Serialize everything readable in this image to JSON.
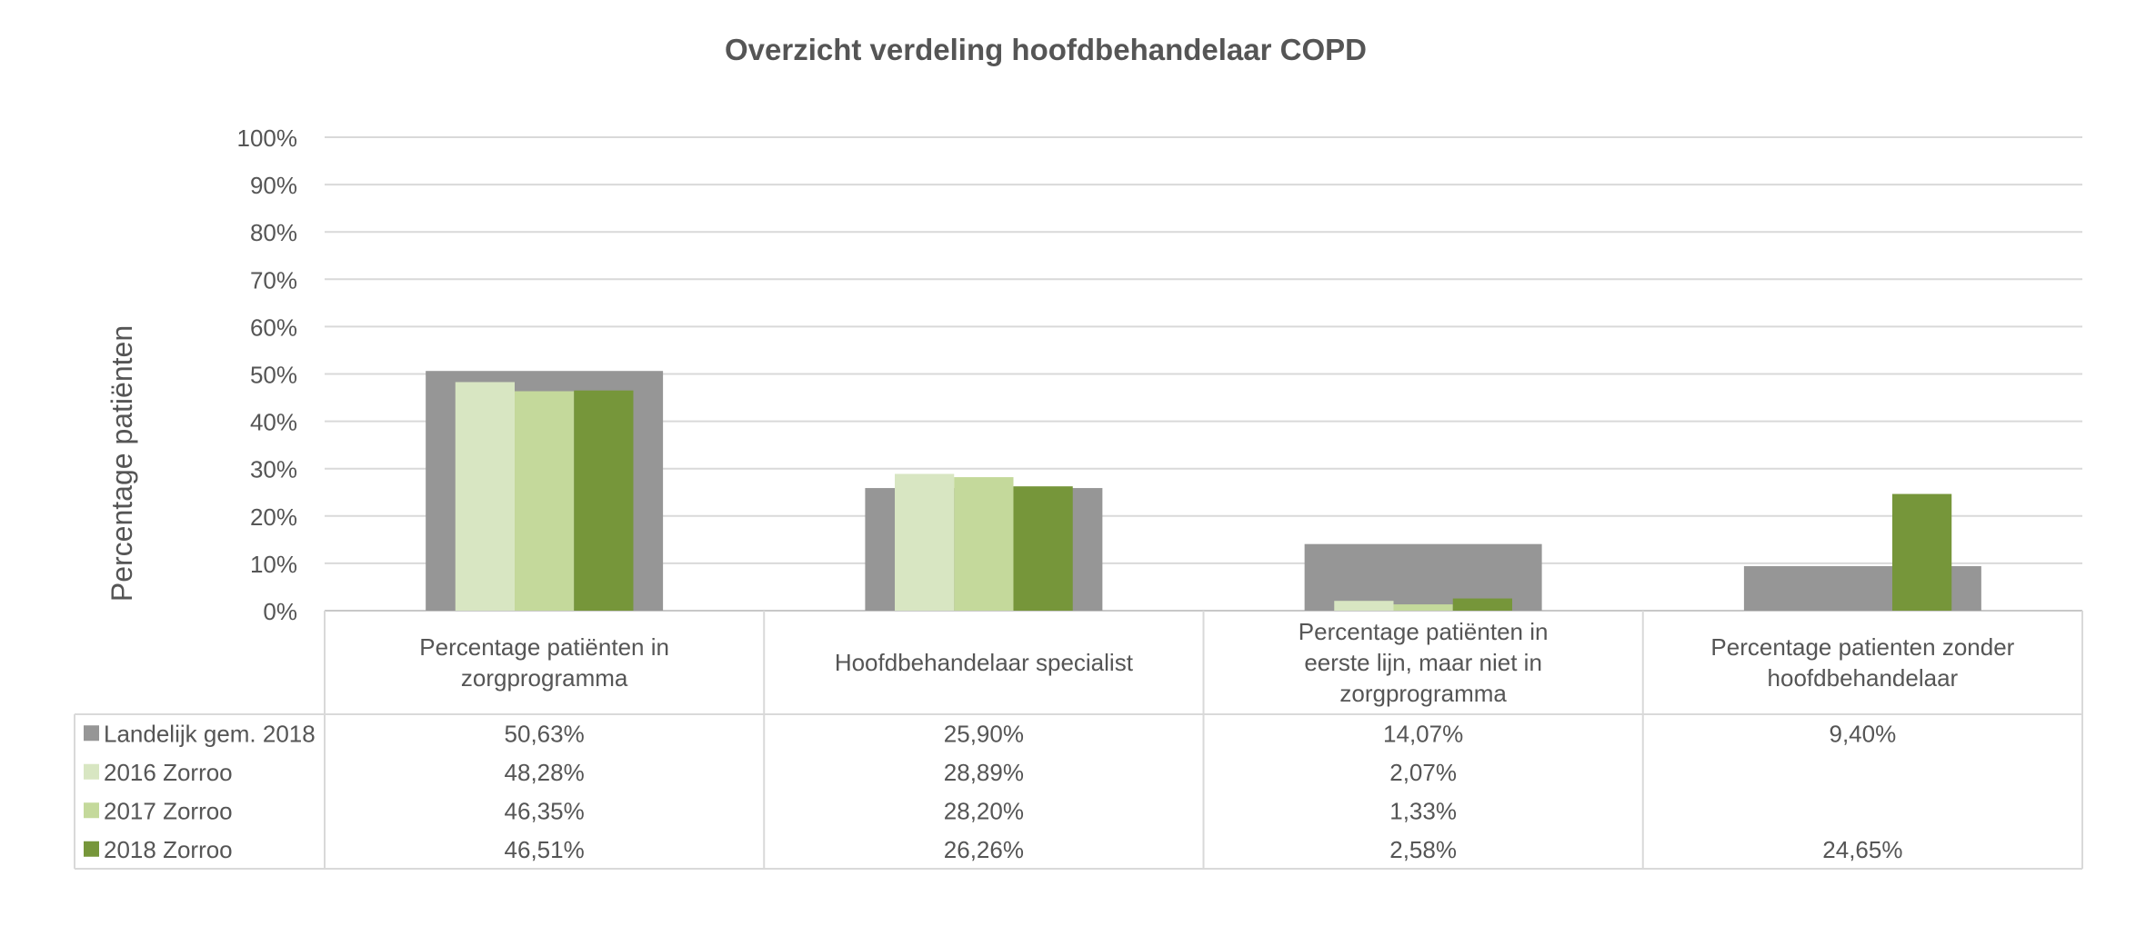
{
  "chart_data": {
    "type": "bar",
    "title": "Overzicht verdeling hoofdbehandelaar COPD",
    "ylabel": "Percentage patiënten",
    "xlabel": "",
    "ylim": [
      0,
      100
    ],
    "yticks": [
      "0%",
      "10%",
      "20%",
      "30%",
      "40%",
      "50%",
      "60%",
      "70%",
      "80%",
      "90%",
      "100%"
    ],
    "grid": true,
    "legend_placement": "data-table-left",
    "categories": [
      [
        "Percentage patiënten in",
        "zorgprogramma"
      ],
      [
        "Hoofdbehandelaar specialist"
      ],
      [
        "Percentage patiënten in",
        "eerste lijn, maar niet in",
        "zorgprogramma"
      ],
      [
        "Percentage patienten zonder",
        "hoofdbehandelaar"
      ]
    ],
    "background_series": {
      "name": "Landelijk gem. 2018",
      "color": "#969696",
      "values": [
        50.63,
        25.9,
        14.07,
        9.4
      ],
      "labels": [
        "50,63%",
        "25,90%",
        "14,07%",
        "9,40%"
      ]
    },
    "series": [
      {
        "name": "2016 Zorroo",
        "color": "#d8e6c2",
        "values": [
          48.28,
          28.89,
          2.07,
          null
        ],
        "labels": [
          "48,28%",
          "28,89%",
          "2,07%",
          ""
        ]
      },
      {
        "name": "2017 Zorroo",
        "color": "#c4d99b",
        "values": [
          46.35,
          28.2,
          1.33,
          null
        ],
        "labels": [
          "46,35%",
          "28,20%",
          "1,33%",
          ""
        ]
      },
      {
        "name": "2018 Zorroo",
        "color": "#76963a",
        "values": [
          46.51,
          26.26,
          2.58,
          24.65
        ],
        "labels": [
          "46,51%",
          "26,26%",
          "2,58%",
          "24,65%"
        ]
      }
    ]
  }
}
